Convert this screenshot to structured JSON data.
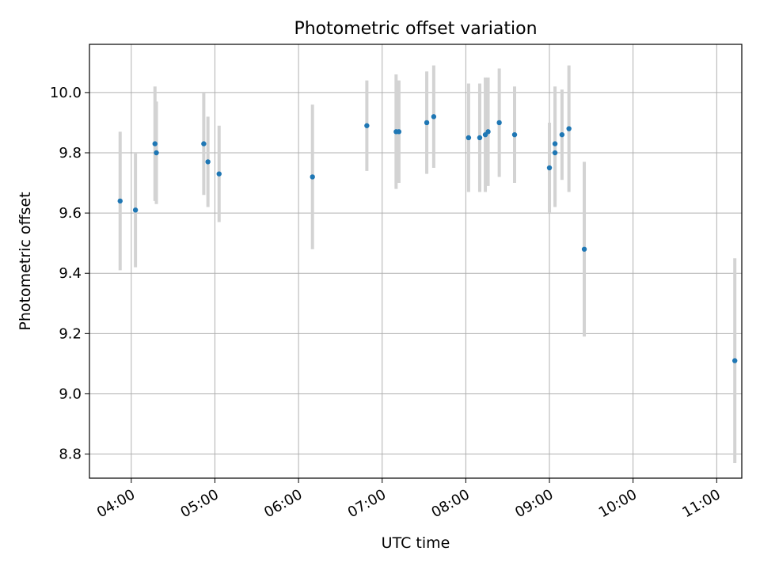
{
  "chart_data": {
    "type": "scatter",
    "title": "Photometric offset variation",
    "xlabel": "UTC time",
    "ylabel": "Photometric offset",
    "x_unit": "UTC time (HH:MM)",
    "xlim": [
      "03:30",
      "11:18"
    ],
    "ylim": [
      8.72,
      10.16
    ],
    "x_ticks": [
      "04:00",
      "05:00",
      "06:00",
      "07:00",
      "08:00",
      "09:00",
      "10:00",
      "11:00"
    ],
    "y_ticks": [
      8.8,
      9.0,
      9.2,
      9.4,
      9.6,
      9.8,
      10.0
    ],
    "y_tick_labels": [
      "8.8",
      "9.0",
      "9.2",
      "9.4",
      "9.6",
      "9.8",
      "10.0"
    ],
    "grid": true,
    "legend": "none",
    "colors": {
      "points": "#1f77b4",
      "errorbars": "#d3d3d3",
      "grid": "#b0b0b0"
    },
    "points": [
      {
        "x": "03:52",
        "y": 9.64,
        "yerr": 0.23
      },
      {
        "x": "04:03",
        "y": 9.61,
        "yerr": 0.19
      },
      {
        "x": "04:17",
        "y": 9.83,
        "yerr": 0.19
      },
      {
        "x": "04:18",
        "y": 9.8,
        "yerr": 0.17
      },
      {
        "x": "04:52",
        "y": 9.83,
        "yerr": 0.17
      },
      {
        "x": "04:55",
        "y": 9.77,
        "yerr": 0.15
      },
      {
        "x": "05:03",
        "y": 9.73,
        "yerr": 0.16
      },
      {
        "x": "06:10",
        "y": 9.72,
        "yerr": 0.24
      },
      {
        "x": "06:49",
        "y": 9.89,
        "yerr": 0.15
      },
      {
        "x": "07:10",
        "y": 9.87,
        "yerr": 0.19
      },
      {
        "x": "07:12",
        "y": 9.87,
        "yerr": 0.17
      },
      {
        "x": "07:32",
        "y": 9.9,
        "yerr": 0.17
      },
      {
        "x": "07:37",
        "y": 9.92,
        "yerr": 0.17
      },
      {
        "x": "08:02",
        "y": 9.85,
        "yerr": 0.18
      },
      {
        "x": "08:10",
        "y": 9.85,
        "yerr": 0.18
      },
      {
        "x": "08:14",
        "y": 9.86,
        "yerr": 0.19
      },
      {
        "x": "08:16",
        "y": 9.87,
        "yerr": 0.18
      },
      {
        "x": "08:24",
        "y": 9.9,
        "yerr": 0.18
      },
      {
        "x": "08:35",
        "y": 9.86,
        "yerr": 0.16
      },
      {
        "x": "09:00",
        "y": 9.75,
        "yerr": 0.15
      },
      {
        "x": "09:04",
        "y": 9.8,
        "yerr": 0.18
      },
      {
        "x": "09:04",
        "y": 9.83,
        "yerr": 0.19
      },
      {
        "x": "09:09",
        "y": 9.86,
        "yerr": 0.15
      },
      {
        "x": "09:14",
        "y": 9.88,
        "yerr": 0.21
      },
      {
        "x": "09:25",
        "y": 9.48,
        "yerr": 0.29
      },
      {
        "x": "11:13",
        "y": 9.11,
        "yerr": 0.34
      }
    ]
  }
}
